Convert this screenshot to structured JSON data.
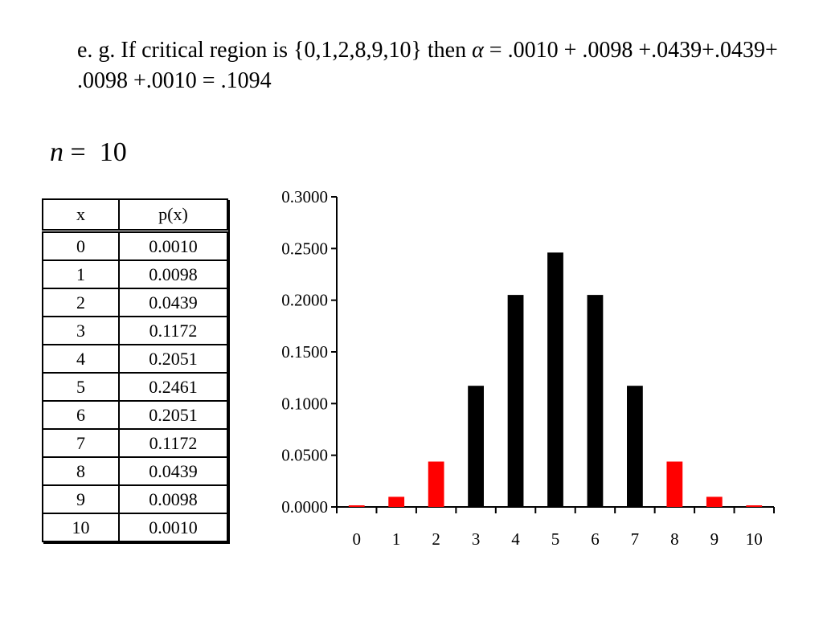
{
  "caption": {
    "text_before": "e. g. If critical region is {0,1,2,8,9,10} then ",
    "alpha_symbol": "α",
    "text_after": " = .0010 + .0098 +.0439+.0439+ .0098 +.0010 = .1094"
  },
  "n_label": {
    "symbol": "n",
    "equals": " =  ",
    "value": "10"
  },
  "table": {
    "headers": [
      "x",
      "p(x)"
    ],
    "rows": [
      [
        "0",
        "0.0010"
      ],
      [
        "1",
        "0.0098"
      ],
      [
        "2",
        "0.0439"
      ],
      [
        "3",
        "0.1172"
      ],
      [
        "4",
        "0.2051"
      ],
      [
        "5",
        "0.2461"
      ],
      [
        "6",
        "0.2051"
      ],
      [
        "7",
        "0.1172"
      ],
      [
        "8",
        "0.0439"
      ],
      [
        "9",
        "0.0098"
      ],
      [
        "10",
        "0.0010"
      ]
    ]
  },
  "chart_data": {
    "type": "bar",
    "title": "",
    "xlabel": "",
    "ylabel": "",
    "categories": [
      "0",
      "1",
      "2",
      "3",
      "4",
      "5",
      "6",
      "7",
      "8",
      "9",
      "10"
    ],
    "values": [
      0.001,
      0.0098,
      0.0439,
      0.1172,
      0.2051,
      0.2461,
      0.2051,
      0.1172,
      0.0439,
      0.0098,
      0.001
    ],
    "bar_colors": [
      "#ff0000",
      "#ff0000",
      "#ff0000",
      "#000000",
      "#000000",
      "#000000",
      "#000000",
      "#000000",
      "#ff0000",
      "#ff0000",
      "#ff0000"
    ],
    "ylim": [
      0,
      0.3
    ],
    "y_ticks": [
      0,
      0.05,
      0.1,
      0.15,
      0.2,
      0.25,
      0.3
    ],
    "y_tick_labels": [
      "0.0000",
      "0.0500",
      "0.1000",
      "0.1500",
      "0.2000",
      "0.2500",
      "0.3000"
    ],
    "grid": false,
    "legend": "none"
  }
}
